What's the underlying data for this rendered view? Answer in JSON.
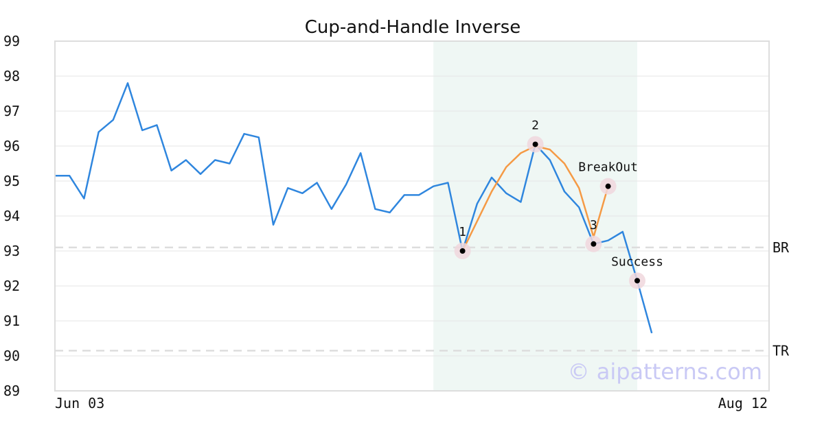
{
  "chart_data": {
    "type": "line",
    "title": "Cup-and-Handle Inverse",
    "xlabel": "",
    "ylabel": "",
    "ylim": [
      89,
      99
    ],
    "yticks": [
      89,
      90,
      91,
      92,
      93,
      94,
      95,
      96,
      97,
      98,
      99
    ],
    "xtick_labels": [
      "Jun 03",
      "Aug 12"
    ],
    "grid": true,
    "watermark": "© aipatterns.com",
    "colors": {
      "price": "#2f86de",
      "pattern": "#f59a45",
      "highlight": "#e8f4f0",
      "marker_ring": "#f0d7dd",
      "ref_line": "#dddddd"
    },
    "highlight_range": [
      26,
      40
    ],
    "series": [
      {
        "values": [
          95.15,
          95.15,
          94.5,
          96.4,
          96.75,
          97.8,
          96.45,
          96.6,
          95.3,
          95.6,
          95.2,
          95.6,
          95.5,
          96.35,
          96.25,
          93.75,
          94.8,
          94.65,
          94.95,
          94.2,
          94.9,
          95.8,
          94.2,
          94.1,
          94.6,
          94.6,
          94.85,
          94.95,
          93.0,
          94.35,
          95.1,
          94.65,
          94.4,
          96.05,
          95.6,
          94.7,
          94.25,
          93.2,
          93.3,
          93.55,
          92.15,
          90.65
        ]
      },
      {
        "x_start": 28,
        "values": [
          93.0,
          93.85,
          94.7,
          95.4,
          95.8,
          96.0,
          95.9,
          95.5,
          94.8,
          93.4,
          94.85
        ]
      }
    ],
    "reference_lines": [
      {
        "label": "BR",
        "y": 93.1
      },
      {
        "label": "TR",
        "y": 90.15
      }
    ],
    "annotations": [
      {
        "label": "1",
        "x": 28,
        "y": 93.0,
        "position": "above"
      },
      {
        "label": "2",
        "x": 33,
        "y": 96.05,
        "position": "above"
      },
      {
        "label": "3",
        "x": 37,
        "y": 93.2,
        "position": "above"
      },
      {
        "label": "BreakOut",
        "x": 38,
        "y": 94.85,
        "position": "above"
      },
      {
        "label": "Success",
        "x": 40,
        "y": 92.15,
        "position": "above"
      }
    ]
  }
}
